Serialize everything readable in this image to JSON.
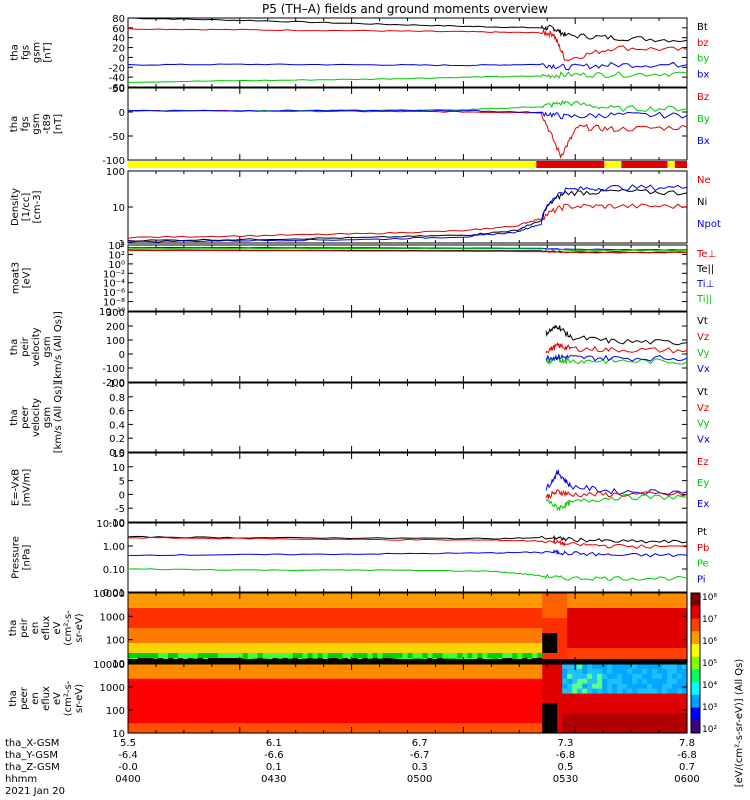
{
  "title": "P5 (TH–A) fields and ground moments overview",
  "colors": {
    "black": "#000000",
    "red": "#e00000",
    "green": "#00c800",
    "blue": "#0000e6",
    "yellow": "#ffff00",
    "barred": "#e00000"
  },
  "chart_data": [
    {
      "id": "p1",
      "type": "line",
      "ylabel": [
        "tha",
        "fgs",
        "gsm",
        "[nT]"
      ],
      "yticks": [
        "80",
        "60",
        "40",
        "20",
        "0",
        "-20",
        "-40",
        "-60"
      ],
      "ylim": [
        -60,
        80
      ],
      "legend": [
        {
          "name": "Bt",
          "color": "black"
        },
        {
          "name": "bz",
          "color": "red"
        },
        {
          "name": "by",
          "color": "green"
        },
        {
          "name": "bx",
          "color": "blue"
        }
      ],
      "series": [
        {
          "color": "black",
          "x": [
            5.5,
            6.0,
            6.5,
            6.9,
            7.2,
            7.25,
            7.3,
            7.5,
            7.8
          ],
          "y": [
            80,
            75,
            68,
            63,
            60,
            60,
            45,
            40,
            35
          ]
        },
        {
          "color": "red",
          "x": [
            5.5,
            6.0,
            6.5,
            6.9,
            7.2,
            7.25,
            7.3,
            7.5,
            7.8
          ],
          "y": [
            58,
            56,
            54,
            52,
            50,
            48,
            -5,
            20,
            15
          ]
        },
        {
          "color": "blue",
          "x": [
            5.5,
            6.0,
            6.5,
            6.9,
            7.2,
            7.3,
            7.5,
            7.8
          ],
          "y": [
            -15,
            -14,
            -15,
            -16,
            -14,
            -20,
            -15,
            -15
          ]
        },
        {
          "color": "green",
          "x": [
            5.5,
            6.0,
            6.5,
            6.9,
            7.2,
            7.3,
            7.5,
            7.8
          ],
          "y": [
            -50,
            -47,
            -44,
            -40,
            -38,
            -35,
            -35,
            -32
          ]
        }
      ]
    },
    {
      "id": "p2",
      "type": "line",
      "ylabel": [
        "tha",
        "fgs",
        "gsm",
        "-t89",
        "[nT]"
      ],
      "yticks": [
        "50",
        "0",
        "-50",
        "-100"
      ],
      "ylim": [
        -120,
        55
      ],
      "legend": [
        {
          "name": "Bz",
          "color": "red"
        },
        {
          "name": "By",
          "color": "green"
        },
        {
          "name": "Bx",
          "color": "blue"
        }
      ],
      "series": [
        {
          "color": "red",
          "x": [
            5.5,
            6.0,
            6.5,
            6.9,
            7.2,
            7.28,
            7.35,
            7.5,
            7.8
          ],
          "y": [
            0,
            -1,
            -2,
            -3,
            -5,
            -110,
            -40,
            -45,
            -40
          ]
        },
        {
          "color": "green",
          "x": [
            5.5,
            6.0,
            6.5,
            6.9,
            7.2,
            7.3,
            7.5,
            7.8
          ],
          "y": [
            0,
            0,
            1,
            2,
            10,
            20,
            5,
            5
          ]
        },
        {
          "color": "blue",
          "x": [
            5.5,
            6.0,
            6.5,
            6.9,
            7.2,
            7.3,
            7.5,
            7.8
          ],
          "y": [
            0,
            0,
            0,
            0,
            -5,
            -15,
            -10,
            -12
          ]
        }
      ]
    },
    {
      "id": "p3",
      "type": "line",
      "ylog": true,
      "ylabel": [
        "Density",
        "[1/cc]",
        "[cm-3]"
      ],
      "yticks": [
        "100",
        "10",
        "1"
      ],
      "ylim": [
        1,
        200
      ],
      "legend": [
        {
          "name": "Ne",
          "color": "red"
        },
        {
          "name": "Ni",
          "color": "black"
        },
        {
          "name": "Npot",
          "color": "blue"
        }
      ],
      "series": [
        {
          "color": "red",
          "x": [
            5.5,
            6.0,
            6.5,
            6.9,
            7.1,
            7.2,
            7.3,
            7.5,
            7.8
          ],
          "y": [
            1.5,
            1.7,
            2.0,
            2.5,
            3.5,
            6,
            15,
            15,
            15
          ]
        },
        {
          "color": "black",
          "x": [
            5.5,
            6.0,
            6.5,
            6.9,
            7.1,
            7.2,
            7.3,
            7.5,
            7.8
          ],
          "y": [
            1.2,
            1.3,
            1.5,
            1.8,
            2.5,
            5,
            40,
            45,
            40
          ]
        },
        {
          "color": "blue",
          "x": [
            5.5,
            6.0,
            6.5,
            6.9,
            7.1,
            7.2,
            7.3,
            7.5,
            7.8
          ],
          "y": [
            1.1,
            1.2,
            1.3,
            1.6,
            2.2,
            4,
            50,
            60,
            60
          ]
        }
      ]
    },
    {
      "id": "p4",
      "type": "line",
      "ylog": true,
      "ylabel": [
        "moat3",
        "[eV]"
      ],
      "yticks": [
        "10⁴",
        "10²",
        "10⁰",
        "10⁻²",
        "10⁻⁴",
        "10⁻⁶",
        "10⁻⁸",
        "10⁻¹⁰"
      ],
      "ylim": [
        1e-10,
        10000
      ],
      "legend": [
        {
          "name": "Te⊥",
          "color": "red"
        },
        {
          "name": "Te||",
          "color": "black"
        },
        {
          "name": "Ti⊥",
          "color": "blue"
        },
        {
          "name": "Ti||",
          "color": "green"
        }
      ],
      "series": [
        {
          "color": "blue",
          "x": [
            5.5,
            6.5,
            7.2,
            7.3,
            7.8
          ],
          "y": [
            3000,
            2500,
            2000,
            1200,
            1000
          ]
        },
        {
          "color": "green",
          "x": [
            5.5,
            6.5,
            7.2,
            7.3,
            7.8
          ],
          "y": [
            2000,
            1800,
            1500,
            800,
            700
          ]
        },
        {
          "color": "black",
          "x": [
            5.5,
            6.5,
            7.2,
            7.3,
            7.8
          ],
          "y": [
            900,
            700,
            600,
            300,
            300
          ]
        },
        {
          "color": "red",
          "x": [
            5.5,
            6.5,
            7.2,
            7.3,
            7.8
          ],
          "y": [
            700,
            550,
            400,
            250,
            250
          ]
        }
      ]
    },
    {
      "id": "p5",
      "type": "line",
      "ylabel": [
        "tha",
        "peir",
        "velocity",
        "gsm",
        "[km/s (All Qs)]"
      ],
      "yticks": [
        "300",
        "200",
        "100",
        "0",
        "-100",
        "-200"
      ],
      "ylim": [
        -200,
        300
      ],
      "legend": [
        {
          "name": "Vt",
          "color": "black"
        },
        {
          "name": "Vz",
          "color": "red"
        },
        {
          "name": "Vy",
          "color": "green"
        },
        {
          "name": "Vx",
          "color": "blue"
        }
      ],
      "series": [
        {
          "color": "black",
          "x": [
            7.22,
            7.27,
            7.32,
            7.5,
            7.8
          ],
          "y": [
            150,
            200,
            120,
            90,
            80
          ]
        },
        {
          "color": "red",
          "x": [
            7.22,
            7.27,
            7.32,
            7.5,
            7.8
          ],
          "y": [
            20,
            60,
            40,
            30,
            25
          ]
        },
        {
          "color": "green",
          "x": [
            7.22,
            7.27,
            7.32,
            7.5,
            7.8
          ],
          "y": [
            -60,
            -40,
            -50,
            -50,
            -55
          ]
        },
        {
          "color": "blue",
          "x": [
            7.22,
            7.27,
            7.32,
            7.5,
            7.8
          ],
          "y": [
            -30,
            -20,
            -25,
            -30,
            -30
          ]
        }
      ]
    },
    {
      "id": "p6",
      "type": "line",
      "ylabel": [
        "tha",
        "peer",
        "velocity",
        "gsm",
        "[km/s (All Qs)]"
      ],
      "yticks": [
        "1.0",
        "0.8",
        "0.6",
        "0.4",
        "0.2",
        "0.0"
      ],
      "ylim": [
        0,
        1
      ],
      "legend": [
        {
          "name": "Vt",
          "color": "black"
        },
        {
          "name": "Vz",
          "color": "red"
        },
        {
          "name": "Vy",
          "color": "green"
        },
        {
          "name": "Vx",
          "color": "blue"
        }
      ],
      "series": []
    },
    {
      "id": "p7",
      "type": "line",
      "ylabel": [
        "E=-VxB",
        "[mV/m]"
      ],
      "yticks": [
        "15",
        "10",
        "5",
        "0",
        "-5",
        "-10"
      ],
      "ylim": [
        -10,
        15
      ],
      "legend": [
        {
          "name": "Ez",
          "color": "red"
        },
        {
          "name": "Ey",
          "color": "green"
        },
        {
          "name": "Ex",
          "color": "blue"
        }
      ],
      "series": [
        {
          "color": "blue",
          "x": [
            7.22,
            7.27,
            7.32,
            7.5,
            7.8
          ],
          "y": [
            2,
            8,
            3,
            1,
            1
          ]
        },
        {
          "color": "red",
          "x": [
            7.22,
            7.27,
            7.32,
            7.5,
            7.8
          ],
          "y": [
            -1,
            1,
            0,
            0,
            0
          ]
        },
        {
          "color": "green",
          "x": [
            7.22,
            7.27,
            7.32,
            7.5,
            7.8
          ],
          "y": [
            -2,
            -5,
            -3,
            -1,
            -1
          ]
        }
      ]
    },
    {
      "id": "p8",
      "type": "line",
      "ylog": true,
      "ylabel": [
        "Pressure",
        "[nPa]"
      ],
      "yticks": [
        "10.00",
        "1.00",
        "0.10",
        "0.01"
      ],
      "ylim": [
        0.01,
        10
      ],
      "legend": [
        {
          "name": "Pt",
          "color": "black"
        },
        {
          "name": "Pb",
          "color": "red"
        },
        {
          "name": "Pe",
          "color": "green"
        },
        {
          "name": "Pi",
          "color": "blue"
        }
      ],
      "series": [
        {
          "color": "black",
          "x": [
            5.5,
            6.0,
            6.5,
            7.0,
            7.25,
            7.3,
            7.5,
            7.8
          ],
          "y": [
            2.5,
            2.3,
            2.2,
            2.1,
            2.3,
            2.0,
            1.6,
            1.5
          ]
        },
        {
          "color": "red",
          "x": [
            5.5,
            6.0,
            6.5,
            7.0,
            7.25,
            7.3,
            7.5,
            7.8
          ],
          "y": [
            2.3,
            2.1,
            1.9,
            1.8,
            1.6,
            1.2,
            1.0,
            0.9
          ]
        },
        {
          "color": "blue",
          "x": [
            5.5,
            6.0,
            6.5,
            7.0,
            7.25,
            7.3,
            7.5,
            7.8
          ],
          "y": [
            0.4,
            0.42,
            0.45,
            0.5,
            0.55,
            0.5,
            0.4,
            0.4
          ]
        },
        {
          "color": "green",
          "x": [
            5.5,
            6.0,
            6.5,
            7.0,
            7.2,
            7.3,
            7.5,
            7.8
          ],
          "y": [
            0.1,
            0.09,
            0.09,
            0.08,
            0.05,
            0.04,
            0.04,
            0.04
          ]
        }
      ]
    },
    {
      "id": "p9",
      "type": "heatmap",
      "ylog": true,
      "ylabel": [
        "tha",
        "peir",
        "en",
        "eflux",
        "eV",
        "(cm²-s-",
        "sr-eV)"
      ],
      "yticks": [
        "10000",
        "1000",
        "100",
        "10"
      ],
      "ylim": [
        5,
        30000
      ]
    },
    {
      "id": "p10",
      "type": "heatmap",
      "ylog": true,
      "ylabel": [
        "tha",
        "peer",
        "en",
        "eflux",
        "eV",
        "(cm²-s-",
        "sr-eV)"
      ],
      "yticks": [
        "10000",
        "1000",
        "100",
        "10"
      ],
      "ylim": [
        5,
        30000
      ]
    }
  ],
  "mode_bar": [
    {
      "from": 5.5,
      "to": 7.18,
      "color": "yellow"
    },
    {
      "from": 7.18,
      "to": 7.46,
      "color": "barred"
    },
    {
      "from": 7.46,
      "to": 7.53,
      "color": "yellow"
    },
    {
      "from": 7.53,
      "to": 7.72,
      "color": "barred"
    },
    {
      "from": 7.72,
      "to": 7.75,
      "color": "yellow"
    },
    {
      "from": 7.75,
      "to": 7.8,
      "color": "barred"
    }
  ],
  "colorbar": {
    "ticks": [
      "10⁸",
      "10⁷",
      "10⁶",
      "10⁵",
      "10⁴",
      "10³",
      "10²"
    ],
    "label": "[eV/(cm²-s-sr-eV)] (All Qs)"
  },
  "xaxis": {
    "rows": [
      {
        "label": "tha_X-GSM",
        "values": [
          "5.5",
          "6.1",
          "6.7",
          "7.3",
          "7.8"
        ]
      },
      {
        "label": "tha_Y-GSM",
        "values": [
          "-6.4",
          "-6.6",
          "-6.7",
          "-6.8",
          "-6.8"
        ]
      },
      {
        "label": "tha_Z-GSM",
        "values": [
          "-0.0",
          "0.1",
          "0.3",
          "0.5",
          "0.7"
        ]
      },
      {
        "label": "hhmm",
        "values": [
          "0400",
          "0430",
          "0500",
          "0530",
          "0600"
        ]
      }
    ],
    "date": "2021 Jan 20"
  }
}
